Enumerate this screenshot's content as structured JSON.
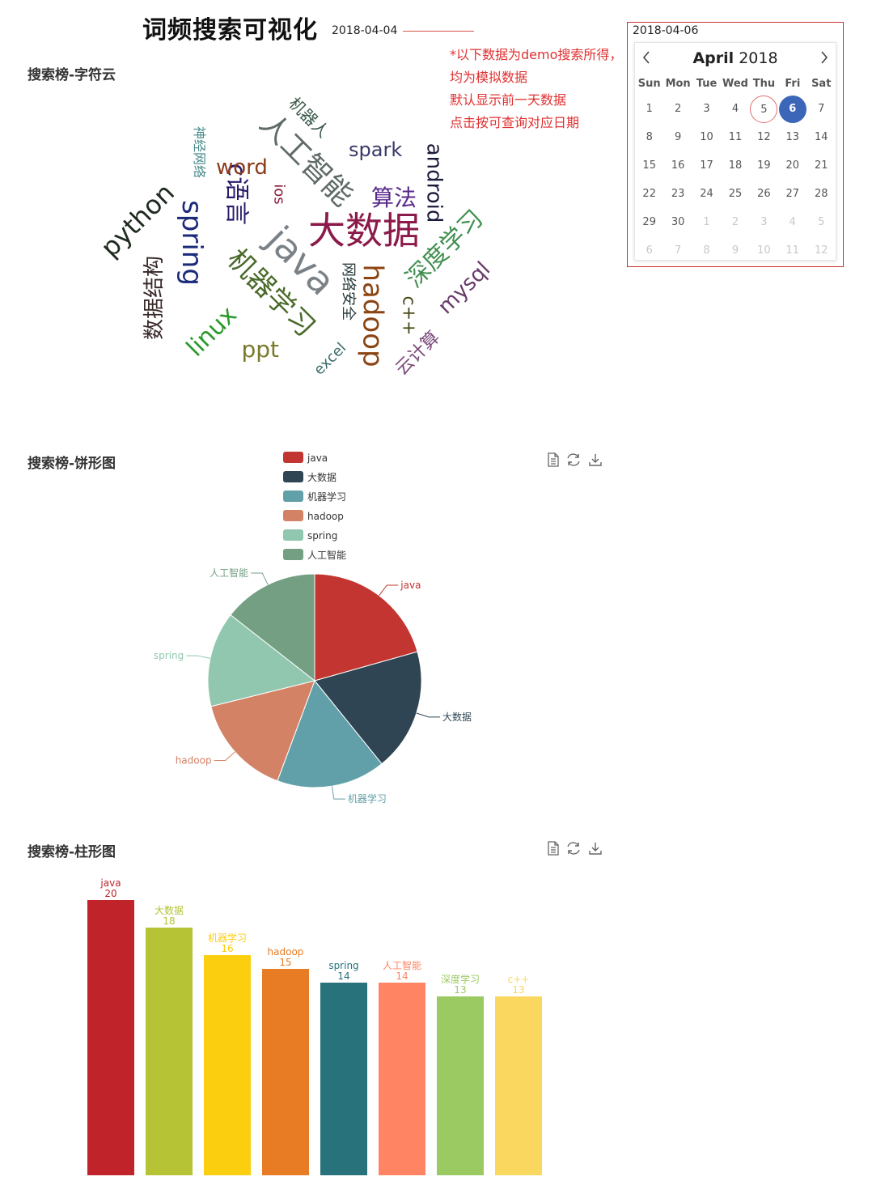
{
  "header": {
    "title": "词频搜索可视化",
    "date": "2018-04-04"
  },
  "notes": [
    "*以下数据为demo搜索所得，",
    "均为模拟数据",
    "默认显示前一天数据",
    "点击按可查询对应日期"
  ],
  "calendar": {
    "input_value": "2018-04-06",
    "month": "April",
    "year": "2018",
    "weekdays": [
      "Sun",
      "Mon",
      "Tue",
      "Wed",
      "Thu",
      "Fri",
      "Sat"
    ],
    "weeks": [
      [
        "1",
        "2",
        "3",
        "4",
        "5",
        "6",
        "7"
      ],
      [
        "8",
        "9",
        "10",
        "11",
        "12",
        "13",
        "14"
      ],
      [
        "15",
        "16",
        "17",
        "18",
        "19",
        "20",
        "21"
      ],
      [
        "22",
        "23",
        "24",
        "25",
        "26",
        "27",
        "28"
      ],
      [
        "29",
        "30",
        "1",
        "2",
        "3",
        "4",
        "5"
      ],
      [
        "6",
        "7",
        "8",
        "9",
        "10",
        "11",
        "12"
      ]
    ],
    "today": "5",
    "selected": "6",
    "colors": {
      "selected": "#3c66b8",
      "today_ring": "#e07070",
      "border": "#c9302c"
    }
  },
  "sections": {
    "wordcloud_title": "搜索榜-字符云",
    "pie_title": "搜索榜-饼形图",
    "bar_title": "搜索榜-柱形图"
  },
  "toolbox": {
    "icons": [
      "data-view-icon",
      "restore-icon",
      "save-image-icon"
    ]
  },
  "chart_data": [
    {
      "type": "wordcloud",
      "words": [
        {
          "text": "大数据",
          "color": "#8b1a4a"
        },
        {
          "text": "java",
          "color": "#7a8288"
        },
        {
          "text": "人工智能",
          "color": "#5f6b66"
        },
        {
          "text": "机器学习",
          "color": "#4a6a2a"
        },
        {
          "text": "hadoop",
          "color": "#8b4513"
        },
        {
          "text": "深度学习",
          "color": "#3f8f4f"
        },
        {
          "text": "spring",
          "color": "#1a2a7a"
        },
        {
          "text": "python",
          "color": "#1f2a1f"
        },
        {
          "text": "c语言",
          "color": "#2a1a6a"
        },
        {
          "text": "android",
          "color": "#1a1a3a"
        },
        {
          "text": "linux",
          "color": "#2a9a2a"
        },
        {
          "text": "mysql",
          "color": "#6a3a6a"
        },
        {
          "text": "数据结构",
          "color": "#3a2a2a"
        },
        {
          "text": "算法",
          "color": "#5a2a8a"
        },
        {
          "text": "spark",
          "color": "#3a3a6a"
        },
        {
          "text": "word",
          "color": "#8a3a1a"
        },
        {
          "text": "ppt",
          "color": "#7a7a2a"
        },
        {
          "text": "c++",
          "color": "#4a4a1a"
        },
        {
          "text": "云计算",
          "color": "#7a4a7a"
        },
        {
          "text": "机器人",
          "color": "#3a5a4a"
        },
        {
          "text": "网络安全",
          "color": "#2a3a3a"
        },
        {
          "text": "神经网络",
          "color": "#4a8a8a"
        },
        {
          "text": "excel",
          "color": "#3a6a6a"
        },
        {
          "text": "ios",
          "color": "#8a1a3a"
        }
      ]
    },
    {
      "type": "pie",
      "legend_position": "top",
      "slices": [
        {
          "name": "java",
          "value": 20,
          "color": "#c23531"
        },
        {
          "name": "大数据",
          "value": 18,
          "color": "#2f4554"
        },
        {
          "name": "机器学习",
          "value": 16,
          "color": "#61a0a8"
        },
        {
          "name": "hadoop",
          "value": 15,
          "color": "#d48265"
        },
        {
          "name": "spring",
          "value": 14,
          "color": "#91c7ae"
        },
        {
          "name": "人工智能",
          "value": 14,
          "color": "#749f83"
        }
      ]
    },
    {
      "type": "bar",
      "categories": [
        "java",
        "大数据",
        "机器学习",
        "hadoop",
        "spring",
        "人工智能",
        "深度学习",
        "c++"
      ],
      "values": [
        20,
        18,
        16,
        15,
        14,
        14,
        13,
        13
      ],
      "colors": [
        "#c1232b",
        "#b5c334",
        "#fcce10",
        "#e87c25",
        "#27727b",
        "#fe8463",
        "#9bca63",
        "#fad860"
      ],
      "ylim": [
        0,
        20
      ]
    }
  ]
}
